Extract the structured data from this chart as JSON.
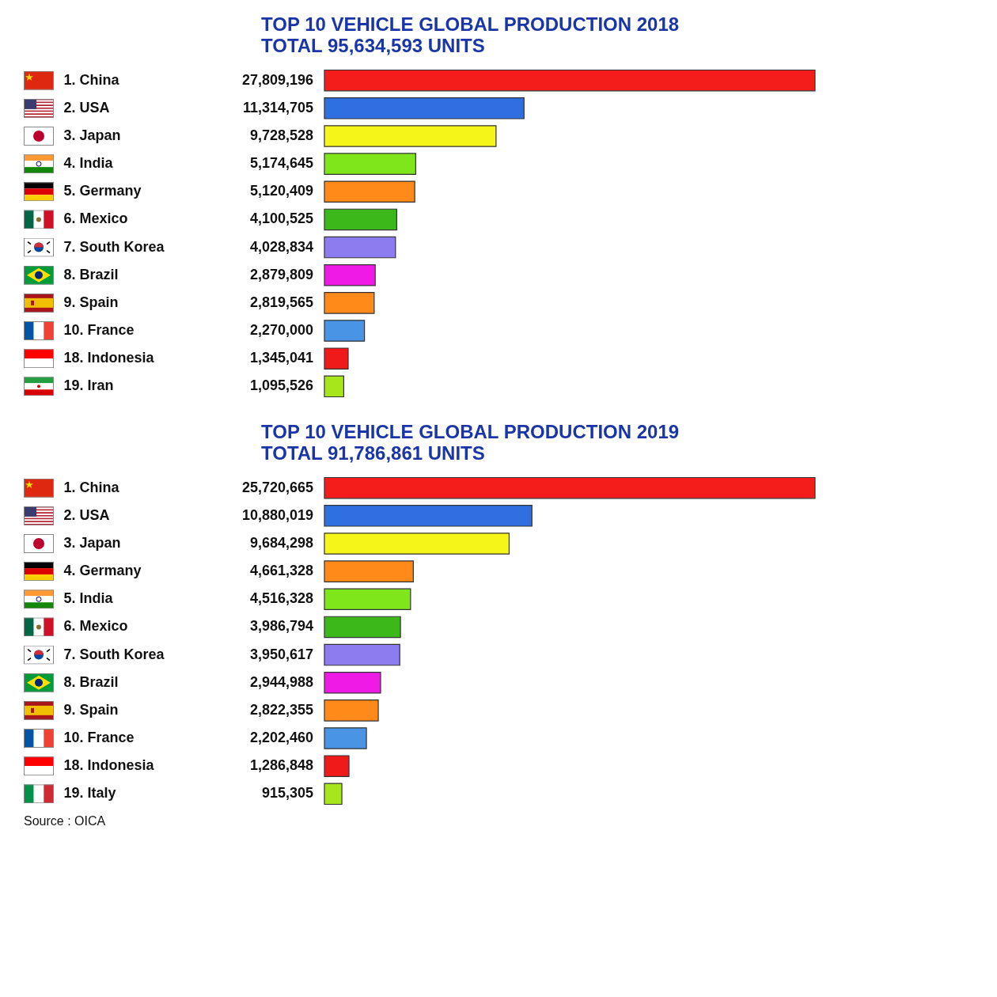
{
  "chart_data": [
    {
      "type": "bar",
      "orientation": "horizontal",
      "title": "TOP 10  VEHICLE GLOBAL PRODUCTION 2018",
      "subtitle": "TOTAL  95,634,593 UNITS",
      "categories": [
        "1. China",
        "2. USA",
        "3. Japan",
        "4. India",
        "5. Germany",
        "6. Mexico",
        "7. South Korea",
        "8. Brazil",
        "9. Spain",
        "10. France",
        "18. Indonesia",
        "19. Iran"
      ],
      "values": [
        27809196,
        11314705,
        9728528,
        5174645,
        5120409,
        4100525,
        4028834,
        2879809,
        2819565,
        2270000,
        1345041,
        1095526
      ],
      "colors": [
        "#f51c1c",
        "#2f6fe0",
        "#f5f51a",
        "#7ee61a",
        "#ff8a1a",
        "#3cb81a",
        "#8c7cf0",
        "#f01ae6",
        "#ff8a1a",
        "#4a94e6",
        "#f01a1a",
        "#a6e61a"
      ],
      "value_labels": [
        "27,809,196",
        "11,314,705",
        "9,728,528",
        "5,174,645",
        "5,120,409",
        "4,100,525",
        "4,028,834",
        "2,879,809",
        "2,819,565",
        "2,270,000",
        "1,345,041",
        "1,095,526"
      ]
    },
    {
      "type": "bar",
      "orientation": "horizontal",
      "title": "TOP 10  VEHICLE GLOBAL PRODUCTION 2019",
      "subtitle": "TOTAL  91,786,861 UNITS",
      "categories": [
        "1. China",
        "2. USA",
        "3. Japan",
        "4. Germany",
        "5. India",
        "6. Mexico",
        "7. South Korea",
        "8. Brazil",
        "9. Spain",
        "10. France",
        "18. Indonesia",
        "19. Italy"
      ],
      "values": [
        25720665,
        10880019,
        9684298,
        4661328,
        4516328,
        3986794,
        3950617,
        2944988,
        2822355,
        2202460,
        1286848,
        915305
      ],
      "colors": [
        "#f51c1c",
        "#2f6fe0",
        "#f5f51a",
        "#ff8a1a",
        "#7ee61a",
        "#3cb81a",
        "#8c7cf0",
        "#f01ae6",
        "#ff8a1a",
        "#4a94e6",
        "#f01a1a",
        "#a6e61a"
      ],
      "value_labels": [
        "25,720,665",
        "10,880,019",
        "9,684,298",
        "4,661,328",
        "4,516,328",
        "3,986,794",
        "3,950,617",
        "2,944,988",
        "2,822,355",
        "2,202,460",
        "1,286,848",
        "915,305"
      ],
      "annotations": [
        "Source : OICA"
      ]
    }
  ]
}
